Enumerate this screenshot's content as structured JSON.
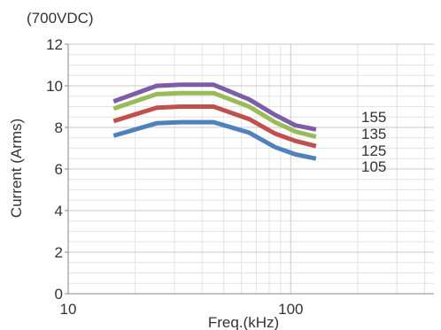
{
  "chart_data": {
    "type": "line",
    "title": "(700VDC)",
    "xlabel": "Freq.(kHz)",
    "ylabel": "Current (Arms)",
    "x_scale": "log",
    "xlim": [
      10,
      440
    ],
    "ylim": [
      0,
      12
    ],
    "x_ticks": [
      10,
      100
    ],
    "y_ticks": [
      0,
      2,
      4,
      6,
      8,
      10,
      12
    ],
    "grid": true,
    "x": [
      16,
      25,
      32,
      45,
      65,
      85,
      105,
      130
    ],
    "series": [
      {
        "name": "155",
        "color": "#7b5ea7",
        "values": [
          9.25,
          10.0,
          10.05,
          10.05,
          9.35,
          8.6,
          8.1,
          7.9
        ]
      },
      {
        "name": "135",
        "color": "#9bbb59",
        "values": [
          8.9,
          9.6,
          9.65,
          9.65,
          9.0,
          8.25,
          7.8,
          7.55
        ]
      },
      {
        "name": "125",
        "color": "#c0504d",
        "values": [
          8.3,
          8.95,
          9.0,
          9.0,
          8.4,
          7.7,
          7.35,
          7.1
        ]
      },
      {
        "name": "105",
        "color": "#4f81bd",
        "values": [
          7.6,
          8.2,
          8.25,
          8.25,
          7.75,
          7.05,
          6.7,
          6.5
        ]
      }
    ]
  }
}
